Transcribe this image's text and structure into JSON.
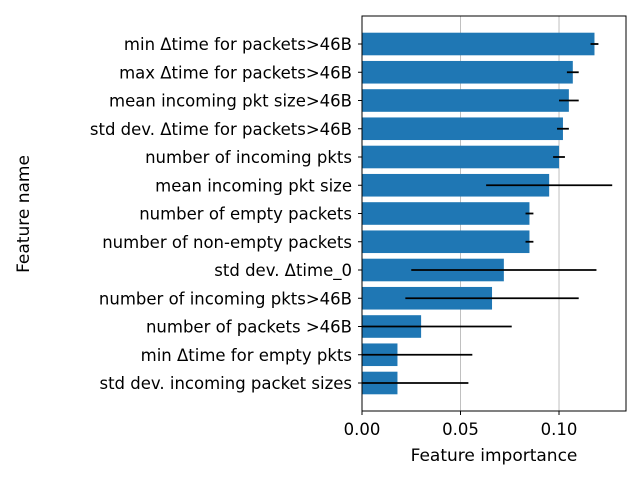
{
  "chart_data": {
    "type": "bar",
    "orientation": "horizontal",
    "xlabel": "Feature importance",
    "ylabel": "Feature name",
    "xlim": [
      0.0,
      0.134
    ],
    "xticks": [
      0.0,
      0.05,
      0.1
    ],
    "xtick_labels": [
      "0.00",
      "0.05",
      "0.10"
    ],
    "grid": "vertical",
    "bar_color": "#1f77b4",
    "errorbar_color": "#000000",
    "categories": [
      "min Δtime for packets>46B",
      "max Δtime for packets>46B",
      "mean incoming pkt size>46B",
      "std dev. Δtime for packets>46B",
      "number of incoming pkts",
      "mean incoming pkt size",
      "number of empty packets",
      "number of non-empty packets",
      "std dev. Δtime_0",
      "number of incoming pkts>46B",
      "number of packets >46B",
      "min Δtime for empty pkts",
      "std dev. incoming packet sizes"
    ],
    "values": [
      0.118,
      0.107,
      0.105,
      0.102,
      0.1,
      0.095,
      0.085,
      0.085,
      0.072,
      0.066,
      0.03,
      0.018,
      0.018
    ],
    "errors": [
      0.002,
      0.003,
      0.005,
      0.003,
      0.003,
      0.032,
      0.002,
      0.002,
      0.047,
      0.044,
      0.046,
      0.038,
      0.036
    ]
  }
}
